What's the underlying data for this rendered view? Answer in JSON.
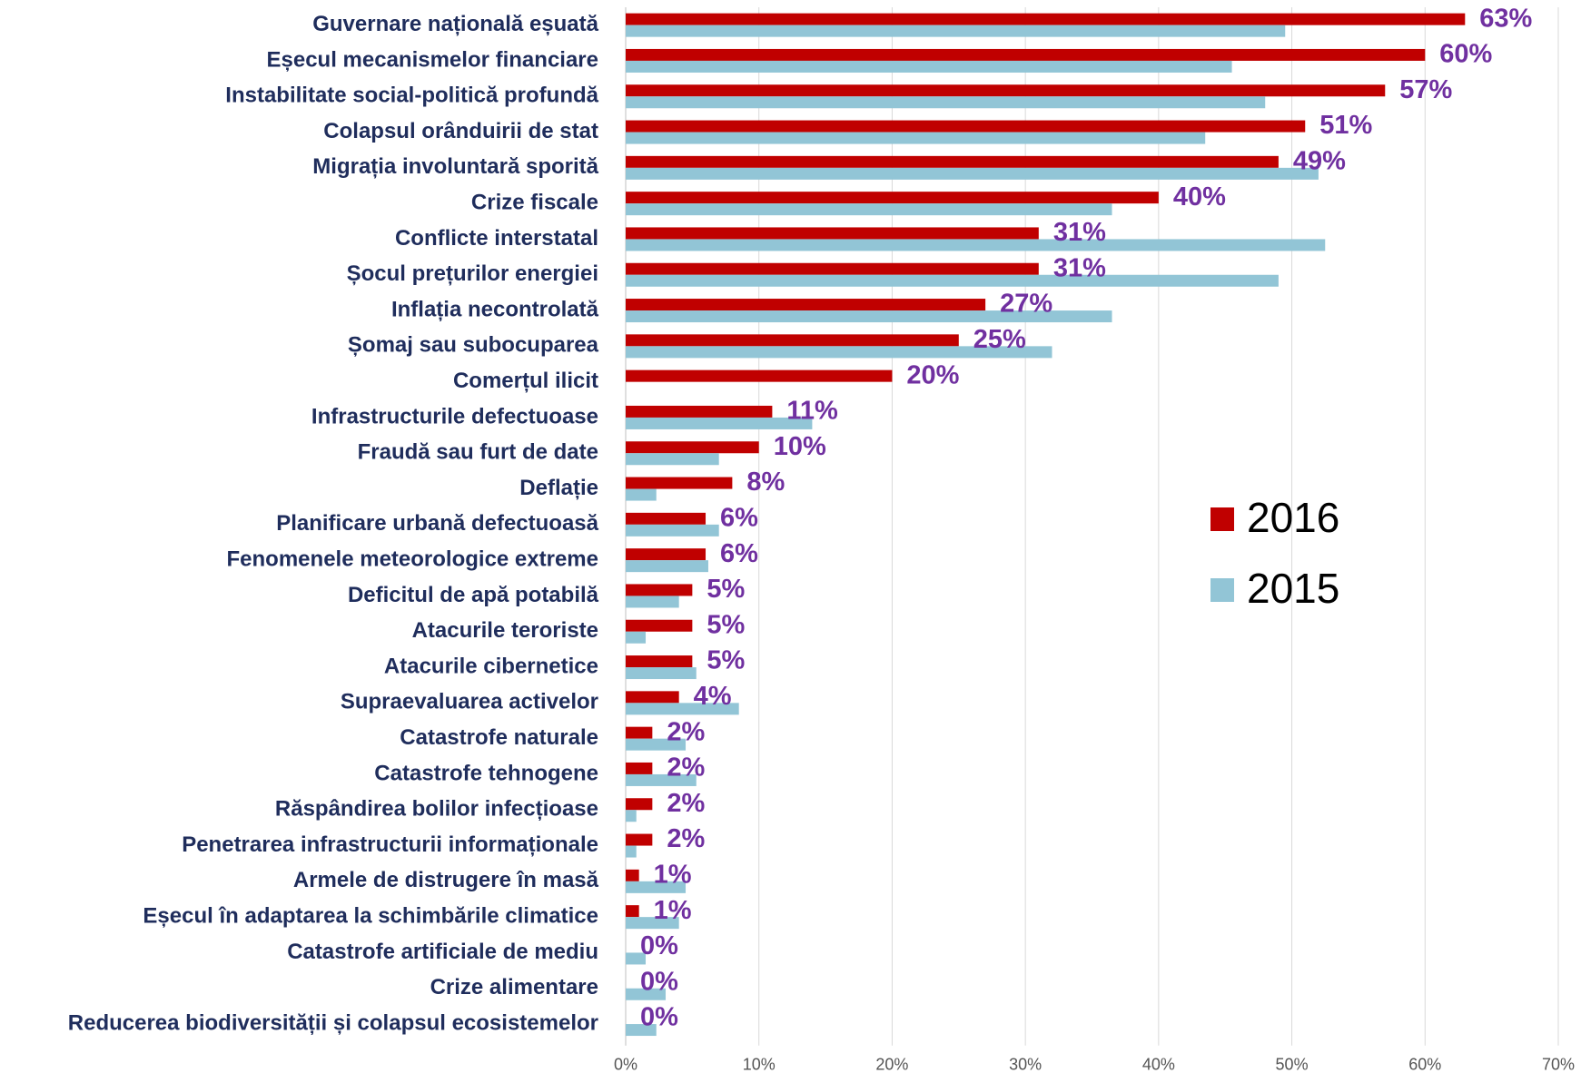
{
  "chart_data": {
    "type": "hbar",
    "categories": [
      "Guvernare națională eșuată",
      "Eșecul mecanismelor financiare",
      "Instabilitate social-politică profundă",
      "Colapsul orânduirii de stat",
      "Migrația involuntară sporită",
      "Crize fiscale",
      "Conflicte interstatal",
      "Șocul prețurilor energiei",
      "Inflația necontrolată",
      "Șomaj sau subocuparea",
      "Comerțul ilicit",
      "Infrastructurile defectuoase",
      "Fraudă sau furt de date",
      "Deflație",
      "Planificare urbană defectuoasă",
      "Fenomenele meteorologice extreme",
      "Deficitul de apă potabilă",
      "Atacurile teroriste",
      "Atacurile cibernetice",
      "Supraevaluarea activelor",
      "Catastrofe naturale",
      "Catastrofe tehnogene",
      "Răspândirea bolilor infecțioase",
      "Penetrarea infrastructurii  informaționale",
      "Armele de distrugere în masă",
      "Eșecul în adaptarea la schimbările climatice",
      "Catastrofe artificiale de mediu",
      "Crize alimentare",
      "Reducerea biodiversității și colapsul ecosistemelor"
    ],
    "series": [
      {
        "name": "2016",
        "color": "#c00000",
        "values": [
          63,
          60,
          57,
          51,
          49,
          40,
          31,
          31,
          27,
          25,
          20,
          11,
          10,
          8,
          6,
          6,
          5,
          5,
          5,
          4,
          2,
          2,
          2,
          2,
          1,
          1,
          0,
          0,
          0
        ],
        "value_labels": [
          "63%",
          "60%",
          "57%",
          "51%",
          "49%",
          "40%",
          "31%",
          "31%",
          "27%",
          "25%",
          "20%",
          "11%",
          "10%",
          "8%",
          "6%",
          "6%",
          "5%",
          "5%",
          "5%",
          "4%",
          "2%",
          "2%",
          "2%",
          "2%",
          "1%",
          "1%",
          "0%",
          "0%",
          "0%"
        ]
      },
      {
        "name": "2015",
        "color": "#92c5d6",
        "values": [
          49.5,
          45.5,
          48,
          43.5,
          52,
          36.5,
          52.5,
          49,
          36.5,
          32,
          null,
          14,
          7,
          2.3,
          7,
          6.2,
          4,
          1.5,
          5.3,
          8.5,
          4.5,
          5.3,
          0.8,
          0.8,
          4.5,
          4,
          1.5,
          3,
          2.3
        ]
      }
    ],
    "xlim": [
      0,
      70
    ],
    "xticks": [
      {
        "value": 0,
        "label": "0%"
      },
      {
        "value": 10,
        "label": "10%"
      },
      {
        "value": 20,
        "label": "20%"
      },
      {
        "value": 30,
        "label": "30%"
      },
      {
        "value": 40,
        "label": "40%"
      },
      {
        "value": 50,
        "label": "50%"
      },
      {
        "value": 60,
        "label": "60%"
      },
      {
        "value": 70,
        "label": "70%"
      }
    ],
    "grid": true,
    "legend": "right"
  }
}
